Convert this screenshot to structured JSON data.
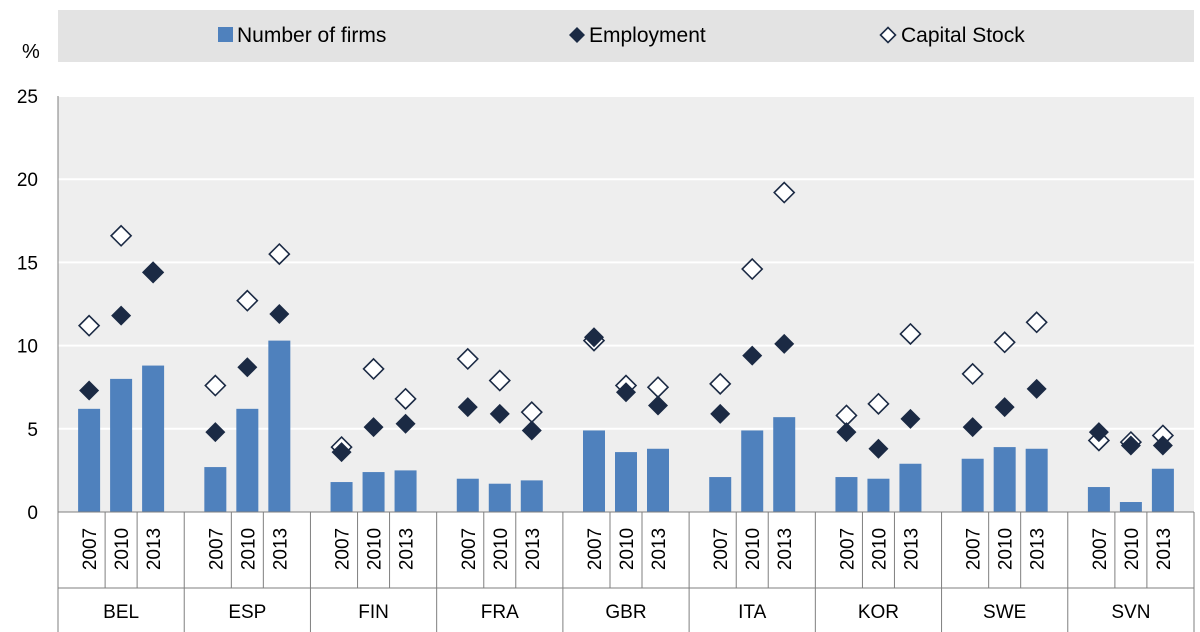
{
  "chart_data": {
    "type": "bar",
    "y_unit": "%",
    "ylim": [
      0,
      25
    ],
    "y_ticks": [
      0,
      5,
      10,
      15,
      20,
      25
    ],
    "grid": true,
    "legend_position": "top",
    "legend": [
      {
        "name": "Number of firms",
        "marker": "bar"
      },
      {
        "name": "Employment",
        "marker": "filled-diamond"
      },
      {
        "name": "Capital Stock",
        "marker": "hollow-diamond"
      }
    ],
    "years": [
      "2007",
      "2010",
      "2013"
    ],
    "groups": [
      {
        "label": "BEL",
        "firms": [
          6.2,
          8.0,
          8.8
        ],
        "employment": [
          7.3,
          11.8,
          14.4
        ],
        "capital": [
          11.2,
          16.6,
          14.4
        ]
      },
      {
        "label": "ESP",
        "firms": [
          2.7,
          6.2,
          10.3
        ],
        "employment": [
          4.8,
          8.7,
          11.9
        ],
        "capital": [
          7.6,
          12.7,
          15.5
        ]
      },
      {
        "label": "FIN",
        "firms": [
          1.8,
          2.4,
          2.5
        ],
        "employment": [
          3.6,
          5.1,
          5.3
        ],
        "capital": [
          3.9,
          8.6,
          6.8
        ]
      },
      {
        "label": "FRA",
        "firms": [
          2.0,
          1.7,
          1.9
        ],
        "employment": [
          6.3,
          5.9,
          4.9
        ],
        "capital": [
          9.2,
          7.9,
          6.0
        ]
      },
      {
        "label": "GBR",
        "firms": [
          4.9,
          3.6,
          3.8
        ],
        "employment": [
          10.5,
          7.2,
          6.4
        ],
        "capital": [
          10.3,
          7.6,
          7.5
        ]
      },
      {
        "label": "ITA",
        "firms": [
          2.1,
          4.9,
          5.7
        ],
        "employment": [
          5.9,
          9.4,
          10.1
        ],
        "capital": [
          7.7,
          14.6,
          19.2
        ]
      },
      {
        "label": "KOR",
        "firms": [
          2.1,
          2.0,
          2.9
        ],
        "employment": [
          4.8,
          3.8,
          5.6
        ],
        "capital": [
          5.8,
          6.5,
          10.7
        ]
      },
      {
        "label": "SWE",
        "firms": [
          3.2,
          3.9,
          3.8
        ],
        "employment": [
          5.1,
          6.3,
          7.4
        ],
        "capital": [
          8.3,
          10.2,
          11.4
        ]
      },
      {
        "label": "SVN",
        "firms": [
          1.5,
          0.6,
          2.6
        ],
        "employment": [
          4.8,
          4.0,
          4.0
        ],
        "capital": [
          4.3,
          4.2,
          4.6
        ]
      }
    ],
    "colors": {
      "bar": "#4f81bd",
      "employment": "#1b2a44",
      "capital_fill": "#ffffff",
      "capital_stroke": "#1b2a44",
      "plot_bg": "#eeeeee",
      "grid": "#ffffff",
      "legend_bg": "#e3e3e3",
      "axis": "#7f7f7f"
    }
  }
}
